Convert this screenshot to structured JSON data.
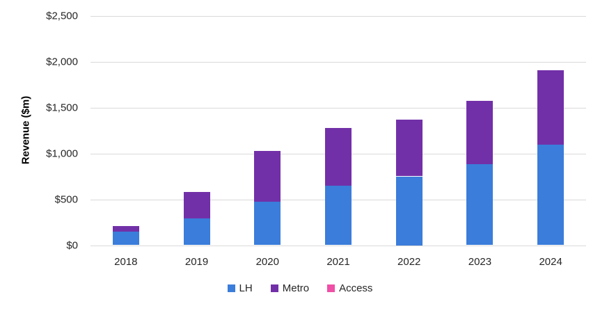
{
  "chart_data": {
    "type": "bar",
    "stacked": true,
    "title": "",
    "xlabel": "",
    "ylabel": "Revenue ($m)",
    "categories": [
      "2018",
      "2019",
      "2020",
      "2021",
      "2022",
      "2023",
      "2024"
    ],
    "series": [
      {
        "name": "LH",
        "color": "#3B7DDA",
        "values": [
          150,
          290,
          470,
          650,
          750,
          885,
          1095
        ]
      },
      {
        "name": "Metro",
        "color": "#7230A8",
        "values": [
          60,
          290,
          555,
          625,
          615,
          690,
          810
        ]
      },
      {
        "name": "Access",
        "color": "#EF4FA6",
        "values": [
          0,
          0,
          0,
          0,
          0,
          0,
          0
        ]
      }
    ],
    "totals": [
      210,
      580,
      1025,
      1275,
      1365,
      1575,
      1905
    ],
    "ylim": [
      0,
      2500
    ],
    "ytick_step": 500,
    "ytick_labels": [
      "$0",
      "$500",
      "$1,000",
      "$1,500",
      "$2,000",
      "$2,500"
    ],
    "grid": true,
    "gridline_color": "#d9d9d9",
    "tick_text_color": "#262626",
    "legend_position": "bottom"
  }
}
